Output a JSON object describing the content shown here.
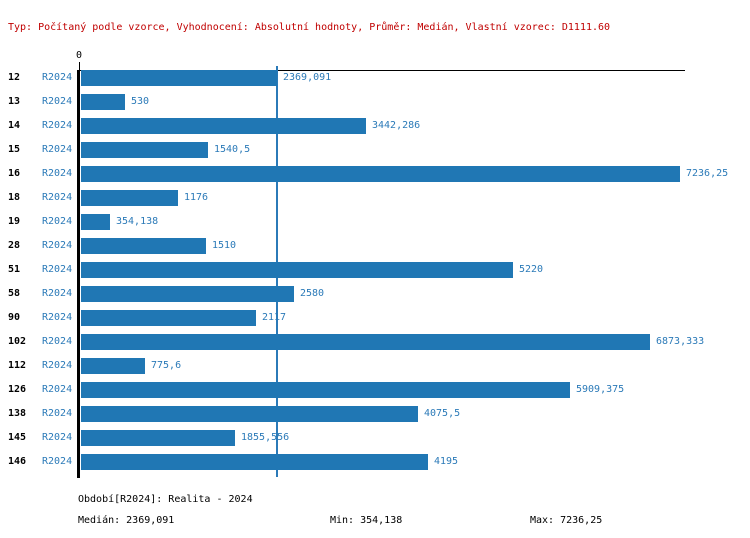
{
  "header": {
    "info_line": "Typ: Počítaný podle vzorce, Vyhodnocení: Absolutní hodnoty, Průměr: Medián, Vlastní vzorec: D1111.60",
    "info_color": "#c00000"
  },
  "chart_data": {
    "type": "bar",
    "orientation": "horizontal",
    "title": "",
    "xlabel": "",
    "ylabel": "",
    "series_label": "R2024",
    "categories": [
      "12",
      "13",
      "14",
      "15",
      "16",
      "18",
      "19",
      "28",
      "51",
      "58",
      "90",
      "102",
      "112",
      "126",
      "138",
      "145",
      "146"
    ],
    "values": [
      2369.091,
      530,
      3442.286,
      1540.5,
      7236.25,
      1176,
      354.138,
      1510,
      5220,
      2580,
      2117,
      6873.333,
      775.6,
      5909.375,
      4075.5,
      1855.556,
      4195
    ],
    "value_labels": [
      "2369,091",
      "530",
      "3442,286",
      "1540,5",
      "7236,25",
      "1176",
      "354,138",
      "1510",
      "5220",
      "2580",
      "2117",
      "6873,333",
      "775,6",
      "5909,375",
      "4075,5",
      "1855,556",
      "4195"
    ],
    "xlim": [
      0,
      7300
    ],
    "x_tick_labels": [
      "0"
    ],
    "median": 2369.091,
    "grid": false,
    "legend_position": "none",
    "bar_color": "#2077b4",
    "text_color": "#2b7ab8",
    "median_line_color": "#2b7ab8"
  },
  "footer": {
    "period_label": "Období[R2024]: Realita - 2024",
    "median_label": "Medián: 2369,091",
    "min_label": "Min: 354,138",
    "max_label": "Max: 7236,25"
  }
}
